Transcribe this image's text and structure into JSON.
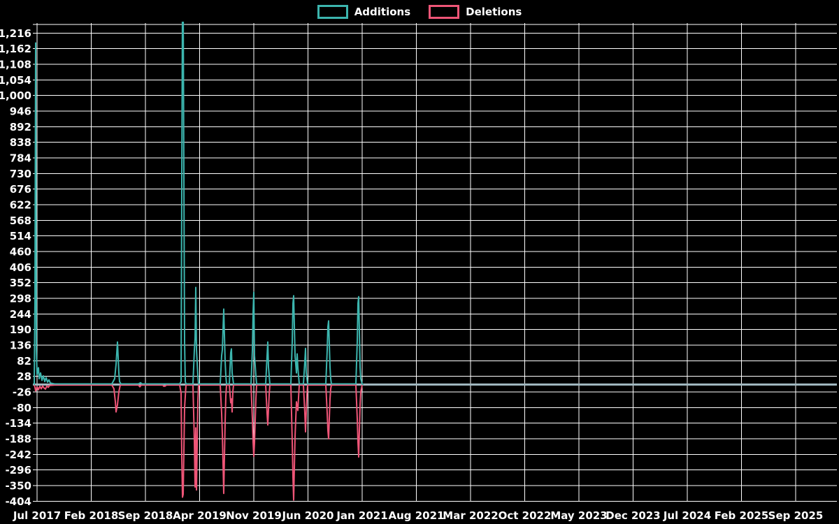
{
  "chart_data": {
    "type": "line",
    "title": "",
    "background_color": "#000000",
    "grid_color": "#ffffff",
    "text_color": "#ffffff",
    "zero_line_color": "#a3bac3",
    "legend_position": "top-center",
    "grid": true,
    "y_axis": {
      "min": -404,
      "max": 1216,
      "tick_step": 54,
      "tick_values": [
        -404,
        -350,
        -296,
        -242,
        -188,
        -134,
        -80,
        -26,
        28,
        82,
        136,
        190,
        244,
        298,
        352,
        406,
        460,
        514,
        568,
        622,
        676,
        730,
        784,
        838,
        892,
        946,
        1000,
        1054,
        1108,
        1162,
        1216
      ],
      "tick_labels": [
        "-404",
        "-350",
        "-296",
        "-242",
        "-188",
        "-134",
        "-80",
        "-26",
        "28",
        "82",
        "136",
        "190",
        "244",
        "298",
        "352",
        "406",
        "460",
        "514",
        "568",
        "622",
        "676",
        "730",
        "784",
        "838",
        "892",
        "946",
        "1,000",
        "1,054",
        "1,108",
        "1,162",
        "1,216"
      ]
    },
    "x_axis": {
      "tick_labels": [
        "Jul 2017",
        "Feb 2018",
        "Sep 2018",
        "Apr 2019",
        "Nov 2019",
        "Jun 2020",
        "Jan 2021",
        "Aug 2021",
        "Mar 2022",
        "Oct 2022",
        "May 2023",
        "Dec 2023",
        "Jul 2024",
        "Feb 2025",
        "Sep 2025"
      ]
    },
    "series": [
      {
        "name": "Additions",
        "color": "#3cb5ae",
        "points": [
          [
            49,
            0
          ],
          [
            50,
            300
          ],
          [
            51,
            1182
          ],
          [
            52,
            120
          ],
          [
            53,
            35
          ],
          [
            55,
            58
          ],
          [
            56,
            20
          ],
          [
            58,
            40
          ],
          [
            60,
            14
          ],
          [
            62,
            30
          ],
          [
            64,
            10
          ],
          [
            66,
            24
          ],
          [
            68,
            8
          ],
          [
            70,
            16
          ],
          [
            72,
            5
          ],
          [
            78,
            2
          ],
          [
            160,
            2
          ],
          [
            164,
            20
          ],
          [
            166,
            70
          ],
          [
            168,
            147
          ],
          [
            170,
            40
          ],
          [
            171,
            10
          ],
          [
            173,
            2
          ],
          [
            198,
            2
          ],
          [
            201,
            6
          ],
          [
            203,
            2
          ],
          [
            257,
            2
          ],
          [
            259,
            10
          ],
          [
            260,
            700
          ],
          [
            261,
            1320
          ],
          [
            262,
            1320
          ],
          [
            263,
            710
          ],
          [
            264,
            150
          ],
          [
            265,
            10
          ],
          [
            266,
            2
          ],
          [
            276,
            2
          ],
          [
            278,
            120
          ],
          [
            279,
            160
          ],
          [
            280,
            336
          ],
          [
            281,
            120
          ],
          [
            283,
            30
          ],
          [
            284,
            2
          ],
          [
            315,
            2
          ],
          [
            317,
            100
          ],
          [
            318,
            120
          ],
          [
            320,
            261
          ],
          [
            322,
            80
          ],
          [
            323,
            30
          ],
          [
            324,
            2
          ],
          [
            328,
            2
          ],
          [
            330,
            110
          ],
          [
            331,
            123
          ],
          [
            332,
            40
          ],
          [
            334,
            2
          ],
          [
            359,
            2
          ],
          [
            361,
            120
          ],
          [
            362,
            250
          ],
          [
            363,
            319
          ],
          [
            364,
            100
          ],
          [
            366,
            30
          ],
          [
            367,
            2
          ],
          [
            380,
            2
          ],
          [
            382,
            100
          ],
          [
            383,
            147
          ],
          [
            384,
            60
          ],
          [
            386,
            2
          ],
          [
            416,
            2
          ],
          [
            418,
            150
          ],
          [
            419,
            280
          ],
          [
            420,
            307
          ],
          [
            422,
            100
          ],
          [
            424,
            40
          ],
          [
            425,
            106
          ],
          [
            426,
            60
          ],
          [
            428,
            2
          ],
          [
            434,
            2
          ],
          [
            436,
            80
          ],
          [
            437,
            125
          ],
          [
            438,
            40
          ],
          [
            440,
            2
          ],
          [
            466,
            2
          ],
          [
            468,
            120
          ],
          [
            469,
            200
          ],
          [
            470,
            220
          ],
          [
            472,
            60
          ],
          [
            473,
            20
          ],
          [
            474,
            2
          ],
          [
            509,
            2
          ],
          [
            511,
            150
          ],
          [
            512,
            280
          ],
          [
            513,
            304
          ],
          [
            515,
            60
          ],
          [
            516,
            20
          ],
          [
            518,
            2
          ],
          [
            519,
            0
          ]
        ]
      },
      {
        "name": "Deletions",
        "color": "#ee5577",
        "points": [
          [
            49,
            0
          ],
          [
            50,
            -10
          ],
          [
            51,
            -22
          ],
          [
            53,
            -8
          ],
          [
            55,
            -18
          ],
          [
            57,
            -6
          ],
          [
            59,
            -15
          ],
          [
            61,
            -5
          ],
          [
            63,
            -12
          ],
          [
            65,
            -16
          ],
          [
            67,
            -5
          ],
          [
            69,
            -10
          ],
          [
            71,
            -3
          ],
          [
            78,
            -2
          ],
          [
            160,
            -2
          ],
          [
            163,
            -15
          ],
          [
            165,
            -60
          ],
          [
            166,
            -95
          ],
          [
            168,
            -70
          ],
          [
            170,
            -25
          ],
          [
            172,
            -2
          ],
          [
            198,
            -2
          ],
          [
            200,
            -8
          ],
          [
            202,
            -2
          ],
          [
            233,
            -2
          ],
          [
            234,
            -6
          ],
          [
            236,
            -6
          ],
          [
            238,
            -2
          ],
          [
            257,
            -2
          ],
          [
            259,
            -30
          ],
          [
            260,
            -250
          ],
          [
            261,
            -390
          ],
          [
            262,
            -380
          ],
          [
            263,
            -230
          ],
          [
            264,
            -80
          ],
          [
            266,
            -2
          ],
          [
            276,
            -2
          ],
          [
            278,
            -200
          ],
          [
            279,
            -355
          ],
          [
            280,
            -150
          ],
          [
            281,
            -365
          ],
          [
            283,
            -60
          ],
          [
            284,
            -2
          ],
          [
            315,
            -2
          ],
          [
            317,
            -100
          ],
          [
            318,
            -172
          ],
          [
            320,
            -377
          ],
          [
            322,
            -130
          ],
          [
            323,
            -40
          ],
          [
            324,
            -2
          ],
          [
            328,
            -2
          ],
          [
            330,
            -63
          ],
          [
            331,
            -50
          ],
          [
            332,
            -95
          ],
          [
            333,
            -25
          ],
          [
            334,
            -2
          ],
          [
            359,
            -2
          ],
          [
            361,
            -120
          ],
          [
            362,
            -200
          ],
          [
            363,
            -249
          ],
          [
            364,
            -203
          ],
          [
            366,
            -50
          ],
          [
            367,
            -2
          ],
          [
            380,
            -2
          ],
          [
            382,
            -100
          ],
          [
            383,
            -140
          ],
          [
            385,
            -35
          ],
          [
            386,
            -2
          ],
          [
            416,
            -2
          ],
          [
            418,
            -200
          ],
          [
            419,
            -320
          ],
          [
            420,
            -400
          ],
          [
            422,
            -180
          ],
          [
            424,
            -60
          ],
          [
            426,
            -90
          ],
          [
            428,
            -2
          ],
          [
            434,
            -2
          ],
          [
            436,
            -100
          ],
          [
            437,
            -164
          ],
          [
            439,
            -35
          ],
          [
            440,
            -2
          ],
          [
            466,
            -2
          ],
          [
            468,
            -100
          ],
          [
            469,
            -160
          ],
          [
            470,
            -188
          ],
          [
            472,
            -50
          ],
          [
            473,
            -15
          ],
          [
            474,
            -2
          ],
          [
            509,
            -2
          ],
          [
            511,
            -120
          ],
          [
            512,
            -200
          ],
          [
            513,
            -251
          ],
          [
            515,
            -70
          ],
          [
            516,
            -25
          ],
          [
            518,
            -2
          ],
          [
            519,
            0
          ]
        ]
      }
    ]
  }
}
